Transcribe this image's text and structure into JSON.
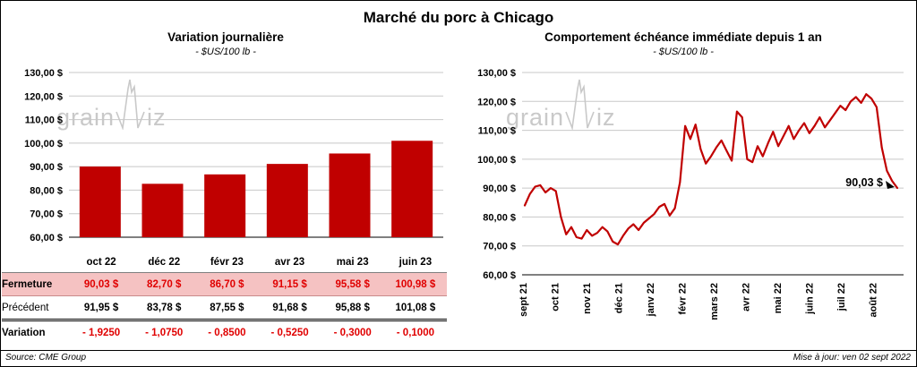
{
  "page": {
    "title": "Marché du porc à Chicago",
    "source": "Source: CME Group",
    "updated": "Mise à jour: ven 02 sept 2022"
  },
  "watermark": {
    "left": "grain",
    "right": "iz"
  },
  "colors": {
    "bar": "#C00000",
    "line": "#C00000",
    "red_text": "#E00000",
    "highlight_row": "#F5C2C2",
    "gridline": "#C8C8C8"
  },
  "table": {
    "rows": [
      {
        "label": "Fermeture",
        "values": [
          "90,03  $",
          "82,70  $",
          "86,70  $",
          "91,15  $",
          "95,58  $",
          "100,98  $"
        ]
      },
      {
        "label": "Précédent",
        "values": [
          "91,95  $",
          "83,78  $",
          "87,55  $",
          "91,68  $",
          "95,88  $",
          "101,08  $"
        ]
      },
      {
        "label": "Variation",
        "values": [
          "- 1,9250",
          "- 1,0750",
          "- 0,8500",
          "- 0,5250",
          "- 0,3000",
          "- 0,1000"
        ]
      }
    ]
  },
  "chart_data": [
    {
      "type": "bar",
      "title": "Variation  journalière",
      "subtitle": "- $US/100 lb -",
      "categories": [
        "oct 22",
        "déc 22",
        "févr 23",
        "avr 23",
        "mai 23",
        "juin 23"
      ],
      "values": [
        90.03,
        82.7,
        86.7,
        91.15,
        95.58,
        100.98
      ],
      "ylim": [
        60,
        130
      ],
      "ytick_step": 10,
      "ytick_labels": [
        "60,00 $",
        "70,00 $",
        "80,00 $",
        "90,00 $",
        "100,00 $",
        "110,00 $",
        "120,00 $",
        "130,00 $"
      ],
      "grid": true,
      "legend": false
    },
    {
      "type": "line",
      "title": "Comportement  échéance  immédiate  depuis 1 an",
      "subtitle": "- $US/100 lb -",
      "x_labels": [
        "sept 21",
        "oct 21",
        "nov 21",
        "déc 21",
        "janv 22",
        "févr 22",
        "mars 22",
        "avr 22",
        "mai 22",
        "juin 22",
        "juil 22",
        "août 22"
      ],
      "values": [
        84,
        88,
        90.5,
        91,
        88.5,
        90,
        89,
        80,
        74,
        76.5,
        73,
        72.5,
        75.5,
        73.5,
        74.5,
        76.5,
        75,
        71.5,
        70.5,
        73.5,
        76,
        77.5,
        75.5,
        78,
        79.5,
        81,
        83.5,
        84.5,
        80.5,
        83,
        92,
        111.5,
        107,
        112,
        103.5,
        98.5,
        101,
        104,
        106.5,
        103,
        99.5,
        116.5,
        114.5,
        100,
        99,
        104.5,
        101,
        105.5,
        109.5,
        104.5,
        108,
        111.5,
        107,
        110,
        112.5,
        109,
        111.5,
        114.5,
        111,
        113.5,
        116,
        118.5,
        117,
        120,
        121.5,
        119.5,
        122.5,
        121,
        118,
        104,
        96,
        92.5,
        90.03
      ],
      "ylim": [
        60,
        130
      ],
      "ytick_step": 10,
      "ytick_labels": [
        "60,00 $",
        "70,00 $",
        "80,00 $",
        "90,00 $",
        "100,00 $",
        "110,00 $",
        "120,00 $",
        "130,00 $"
      ],
      "annotation": "90,03 $",
      "grid": true,
      "legend": false
    }
  ]
}
